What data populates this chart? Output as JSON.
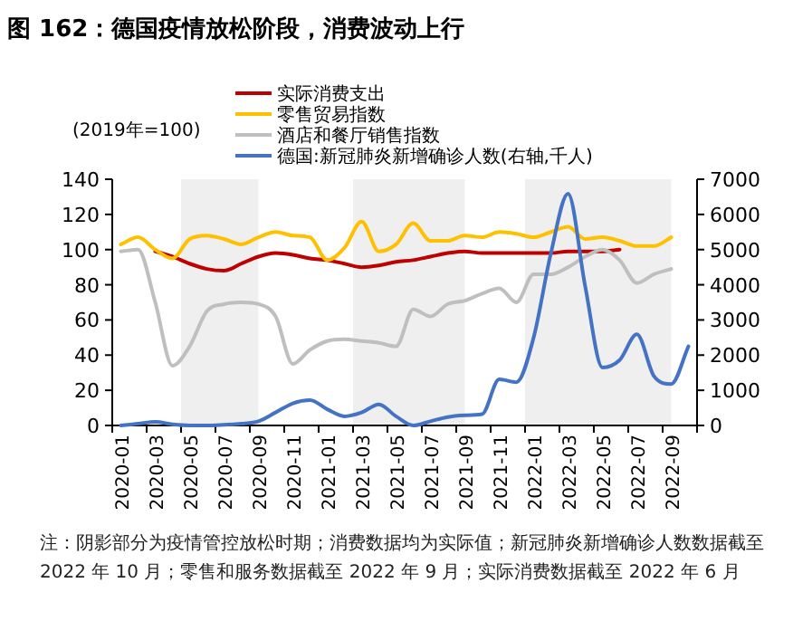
{
  "chart_data": {
    "type": "line",
    "title": "图 162：德国疫情放松阶段，消费波动上行",
    "ylabel": "(2019年=100)",
    "legend": "top",
    "categories": [
      "2020-01",
      null,
      "2020-03",
      null,
      "2020-05",
      null,
      "2020-07",
      null,
      "2020-09",
      null,
      "2020-11",
      null,
      "2021-01",
      null,
      "2021-03",
      null,
      "2021-05",
      null,
      "2021-07",
      null,
      "2021-09",
      null,
      "2021-11",
      null,
      "2022-01",
      null,
      "2022-03",
      null,
      "2022-05",
      null,
      "2022-07",
      null,
      "2022-09",
      null
    ],
    "series": [
      {
        "name": "实际消费支出",
        "color": "#c00000",
        "values": [
          null,
          null,
          99,
          96,
          92,
          89,
          88,
          92,
          96,
          98,
          97,
          95,
          94,
          92,
          90,
          91,
          93,
          94,
          96,
          98,
          99,
          98,
          98,
          98,
          98,
          98,
          99,
          99,
          99,
          100,
          null,
          null,
          null,
          null
        ]
      },
      {
        "name": "零售贸易指数",
        "color": "#ffc000",
        "values": [
          103,
          107,
          100,
          95,
          106,
          108,
          106,
          103,
          107,
          110,
          108,
          107,
          94,
          101,
          116,
          99,
          103,
          115,
          105,
          105,
          108,
          107,
          110,
          109,
          107,
          110,
          113,
          106,
          107,
          105,
          102,
          102,
          107,
          null
        ]
      },
      {
        "name": "酒店和餐厅销售指数",
        "color": "#bfbfbf",
        "values": [
          99,
          100,
          70,
          34,
          45,
          65,
          69,
          70,
          69,
          62,
          35,
          43,
          48,
          49,
          48,
          47,
          45,
          66,
          62,
          69,
          71,
          75,
          78,
          70,
          86,
          86,
          90,
          96,
          100,
          94,
          81,
          86,
          89,
          null
        ]
      },
      {
        "name": "德国:新冠肺炎新增确诊人数(右轴,千人)",
        "color": "#4472c4",
        "axis": "y2",
        "values": [
          0,
          50,
          100,
          30,
          0,
          0,
          20,
          50,
          120,
          370,
          630,
          720,
          460,
          260,
          370,
          600,
          260,
          0,
          120,
          240,
          290,
          320,
          1310,
          1230,
          2500,
          4890,
          6590,
          3950,
          1650,
          1860,
          2590,
          1400,
          1180,
          2250
        ]
      }
    ],
    "ylim": [
      0,
      140
    ],
    "yticks": [
      0,
      20,
      40,
      60,
      80,
      100,
      120,
      140
    ],
    "y2lim": [
      0,
      7000
    ],
    "y2ticks": [
      0,
      1000,
      2000,
      3000,
      4000,
      5000,
      6000,
      7000
    ],
    "bands": [
      {
        "axis": "x",
        "from": "2020-05",
        "to": "2020-09",
        "color": "#efefef"
      },
      {
        "axis": "x",
        "from": "2021-03",
        "to": "2021-09",
        "color": "#efefef"
      },
      {
        "axis": "x",
        "from": "2022-01",
        "to": "2022-09",
        "color": "#efefef"
      }
    ],
    "annotations": [
      "注：阴影部分为疫情管控放松时期；消费数据均为实际值；新冠肺炎新增确诊人数数据截至 2022 年 10 月；零售和服务数据截至 2022 年 9 月；实际消费数据截至 2022 年 6 月"
    ]
  }
}
